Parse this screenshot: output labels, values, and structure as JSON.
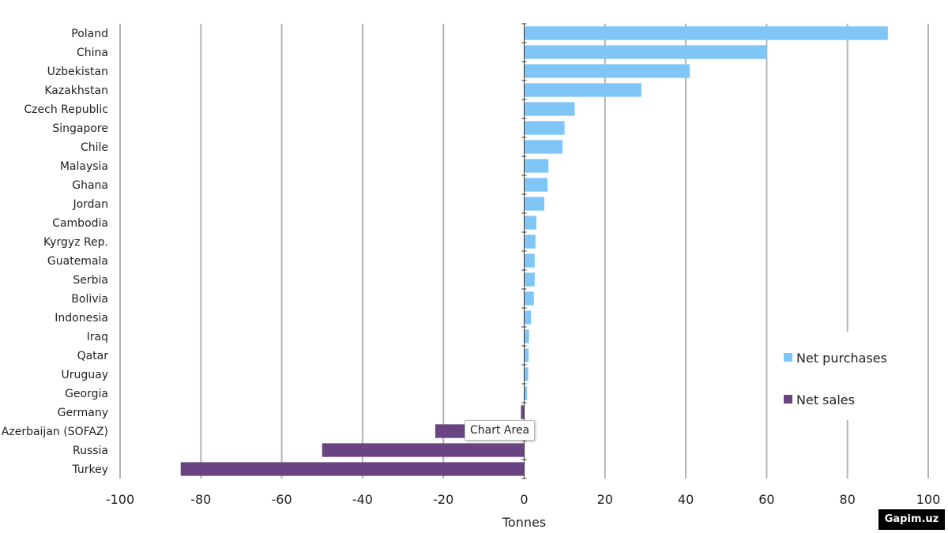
{
  "chart_data": {
    "type": "bar",
    "orientation": "horizontal",
    "xlabel": "Tonnes",
    "xlim": [
      -100,
      100
    ],
    "xticks": [
      -100,
      -80,
      -60,
      -40,
      -20,
      0,
      20,
      40,
      60,
      80,
      100
    ],
    "categories": [
      "Poland",
      "China",
      "Uzbekistan",
      "Kazakhstan",
      "Czech Republic",
      "Singapore",
      "Chile",
      "Malaysia",
      "Ghana",
      "Jordan",
      "Cambodia",
      "Kyrgyz Rep.",
      "Guatemala",
      "Serbia",
      "Bolivia",
      "Indonesia",
      "Iraq",
      "Qatar",
      "Uruguay",
      "Georgia",
      "Germany",
      "Azerbaijan (SOFAZ)",
      "Russia",
      "Turkey"
    ],
    "values": [
      90,
      60,
      41,
      29,
      12.5,
      10,
      9.5,
      6,
      5.8,
      5,
      3,
      2.8,
      2.6,
      2.6,
      2.4,
      1.7,
      1.2,
      1.1,
      1.0,
      0.7,
      -0.8,
      -22,
      -50,
      -85
    ],
    "series": [
      {
        "name": "Net purchases",
        "color": "#7fc5f6"
      },
      {
        "name": "Net sales",
        "color": "#6a4383"
      }
    ],
    "grid": true,
    "legend_position": "right"
  },
  "tooltip": "Chart Area",
  "watermark": "Gapim.uz"
}
